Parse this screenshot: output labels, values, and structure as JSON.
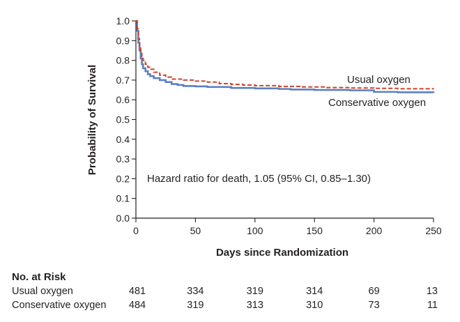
{
  "chart_data": {
    "type": "line",
    "subtype": "kaplan-meier",
    "xlabel": "Days since Randomization",
    "ylabel": "Probability of Survival",
    "xlim": [
      0,
      250
    ],
    "ylim": [
      0,
      1.0
    ],
    "x_ticks": [
      0,
      50,
      100,
      150,
      200,
      250
    ],
    "y_ticks": [
      0.0,
      0.1,
      0.2,
      0.3,
      0.4,
      0.5,
      0.6,
      0.7,
      0.8,
      0.9,
      1.0
    ],
    "annotation": "Hazard ratio for death, 1.05 (95% CI, 0.85–1.30)",
    "series": [
      {
        "name": "Usual oxygen",
        "color": "#c8452f",
        "style": "dashed",
        "x": [
          0,
          1,
          2,
          3,
          4,
          5,
          6,
          8,
          10,
          12,
          15,
          20,
          25,
          30,
          40,
          50,
          60,
          70,
          80,
          90,
          100,
          120,
          140,
          160,
          180,
          200,
          220,
          250
        ],
        "values": [
          1.0,
          0.96,
          0.91,
          0.87,
          0.84,
          0.82,
          0.8,
          0.78,
          0.765,
          0.755,
          0.74,
          0.725,
          0.715,
          0.705,
          0.7,
          0.695,
          0.69,
          0.682,
          0.678,
          0.675,
          0.672,
          0.668,
          0.665,
          0.662,
          0.66,
          0.658,
          0.656,
          0.655
        ]
      },
      {
        "name": "Conservative oxygen",
        "color": "#5b7fc0",
        "style": "solid",
        "x": [
          0,
          1,
          2,
          3,
          4,
          5,
          6,
          8,
          10,
          12,
          15,
          20,
          25,
          30,
          35,
          40,
          50,
          60,
          80,
          100,
          120,
          130,
          150,
          180,
          200,
          220,
          250
        ],
        "values": [
          1.0,
          0.95,
          0.89,
          0.85,
          0.81,
          0.78,
          0.76,
          0.745,
          0.73,
          0.72,
          0.71,
          0.7,
          0.69,
          0.68,
          0.675,
          0.67,
          0.668,
          0.665,
          0.66,
          0.658,
          0.655,
          0.652,
          0.65,
          0.648,
          0.64,
          0.638,
          0.635
        ]
      }
    ],
    "risk_table": {
      "title": "No. at Risk",
      "time_points": [
        0,
        50,
        100,
        150,
        200,
        250
      ],
      "rows": [
        {
          "name": "Usual oxygen",
          "counts": [
            "481",
            "334",
            "319",
            "314",
            "69",
            "13"
          ]
        },
        {
          "name": "Conservative oxygen",
          "counts": [
            "484",
            "319",
            "313",
            "310",
            "73",
            "11"
          ]
        }
      ]
    }
  }
}
